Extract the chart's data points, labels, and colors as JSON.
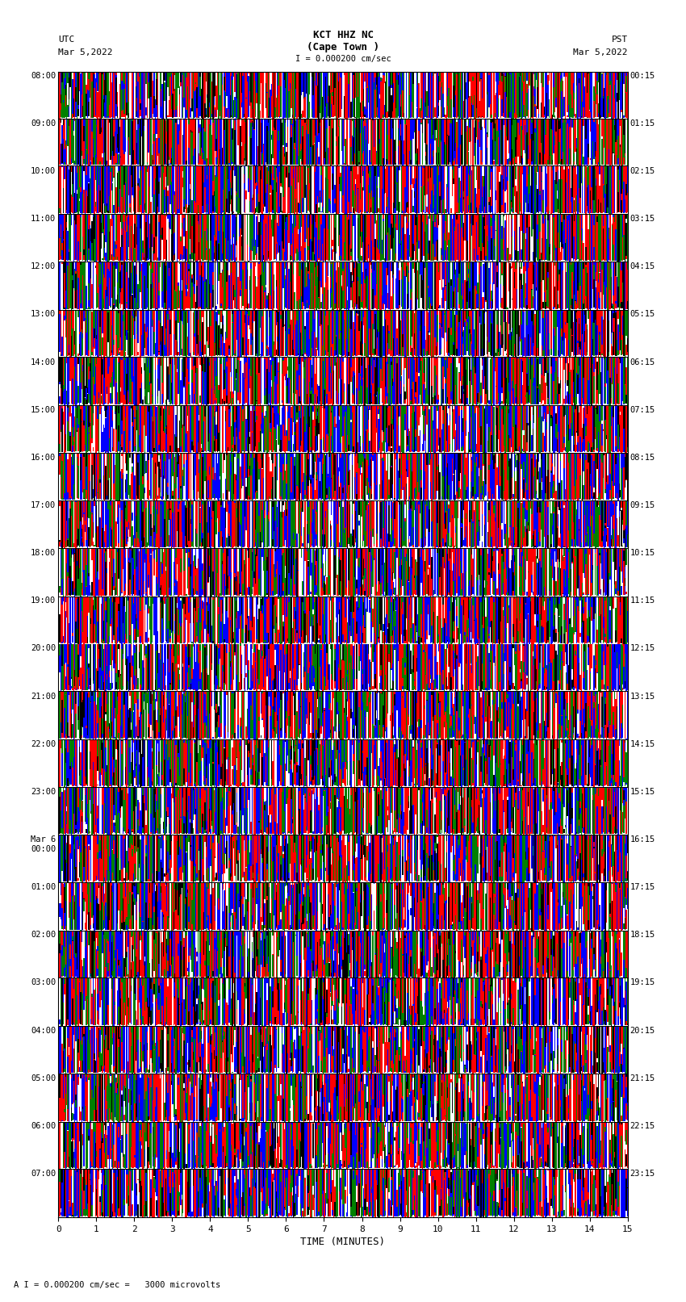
{
  "title_line1": "KCT HHZ NC",
  "title_line2": "(Cape Town )",
  "scale_text": "I = 0.000200 cm/sec",
  "utc_label": "UTC",
  "utc_date": "Mar 5,2022",
  "pst_label": "PST",
  "pst_date": "Mar 5,2022",
  "xlabel": "TIME (MINUTES)",
  "bottom_label": "A I = 0.000200 cm/sec =   3000 microvolts",
  "left_times": [
    "08:00",
    "09:00",
    "10:00",
    "11:00",
    "12:00",
    "13:00",
    "14:00",
    "15:00",
    "16:00",
    "17:00",
    "18:00",
    "19:00",
    "20:00",
    "21:00",
    "22:00",
    "23:00",
    "Mar 6\n00:00",
    "01:00",
    "02:00",
    "03:00",
    "04:00",
    "05:00",
    "06:00",
    "07:00"
  ],
  "right_times": [
    "00:15",
    "01:15",
    "02:15",
    "03:15",
    "04:15",
    "05:15",
    "06:15",
    "07:15",
    "08:15",
    "09:15",
    "10:15",
    "11:15",
    "12:15",
    "13:15",
    "14:15",
    "15:15",
    "16:15",
    "17:15",
    "18:15",
    "19:15",
    "20:15",
    "21:15",
    "22:15",
    "23:15"
  ],
  "n_rows": 24,
  "colors": [
    "#ff0000",
    "#0000ff",
    "#008000",
    "#000000",
    "#ffffff"
  ],
  "bg_color": "#ffffff",
  "x_ticks": [
    0,
    1,
    2,
    3,
    4,
    5,
    6,
    7,
    8,
    9,
    10,
    11,
    12,
    13,
    14,
    15
  ],
  "fig_width": 8.5,
  "fig_height": 16.13,
  "seed": 42
}
